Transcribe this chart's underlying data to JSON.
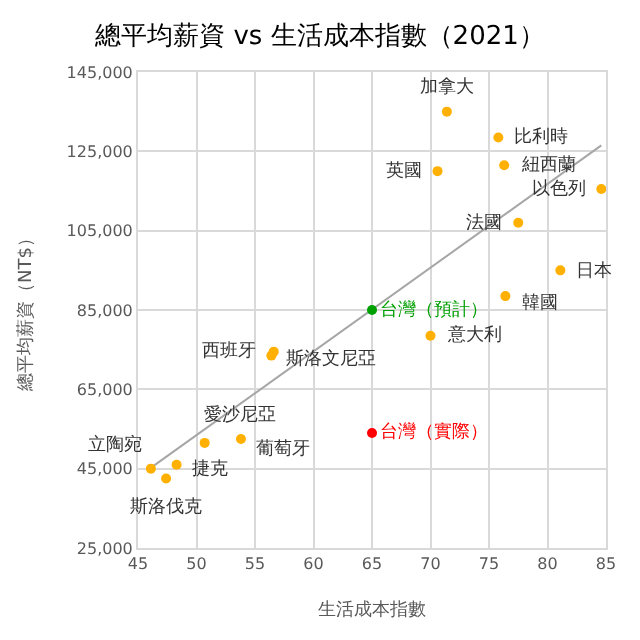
{
  "chart_data": {
    "type": "scatter",
    "title": "總平均薪資 vs 生活成本指數（2021）",
    "xlabel": "生活成本指數",
    "ylabel": "總平均薪資（NT$）",
    "xlim": [
      45,
      85
    ],
    "xticks": [
      45,
      50,
      55,
      60,
      65,
      70,
      75,
      80,
      85
    ],
    "ylim": [
      25000,
      145000
    ],
    "yticks": [
      {
        "value": 25000,
        "label": "25,000"
      },
      {
        "value": 45000,
        "label": "45,000"
      },
      {
        "value": 65000,
        "label": "65,000"
      },
      {
        "value": 85000,
        "label": "85,000"
      },
      {
        "value": 105000,
        "label": "105,000"
      },
      {
        "value": 125000,
        "label": "125,000"
      },
      {
        "value": 145000,
        "label": "145,000"
      }
    ],
    "grid": true,
    "legend": false,
    "marker": "circle",
    "series": [
      {
        "type": "line",
        "marker": "none",
        "color": "#a6a6a6",
        "x": [
          46,
          84.6
        ],
        "values": [
          45000,
          126500
        ]
      },
      {
        "color": "#ffb000",
        "x": [
          71.4,
          75.8,
          76.3,
          70.6,
          84.6,
          77.5,
          81.1,
          76.4,
          70.0,
          56.4,
          56.6,
          53.8,
          50.7,
          46.1,
          48.3,
          47.4
        ],
        "values": [
          135000,
          128500,
          121500,
          120000,
          115500,
          107000,
          95000,
          88500,
          78500,
          73500,
          74500,
          52500,
          51500,
          45000,
          46000,
          42500
        ]
      },
      {
        "name": "台灣（預計）",
        "color": "#00a000",
        "x": [
          65
        ],
        "values": [
          85000
        ]
      },
      {
        "name": "台灣（實際）",
        "color": "#ff0000",
        "x": [
          65
        ],
        "values": [
          54000
        ]
      }
    ],
    "annotations": [
      {
        "text": "加拿大",
        "x": 71.4,
        "y": 135000
      },
      {
        "text": "比利時",
        "x": 75.8,
        "y": 128500
      },
      {
        "text": "紐西蘭",
        "x": 76.3,
        "y": 121500
      },
      {
        "text": "英國",
        "x": 70.6,
        "y": 120000
      },
      {
        "text": "以色列",
        "x": 84.6,
        "y": 115500
      },
      {
        "text": "法國",
        "x": 77.5,
        "y": 107000
      },
      {
        "text": "日本",
        "x": 81.1,
        "y": 95000
      },
      {
        "text": "韓國",
        "x": 76.4,
        "y": 88500
      },
      {
        "text": "意大利",
        "x": 70.0,
        "y": 78500
      },
      {
        "text": "西班牙",
        "x": 56.4,
        "y": 73500
      },
      {
        "text": "斯洛文尼亞",
        "x": 56.6,
        "y": 74500
      },
      {
        "text": "愛沙尼亞",
        "x": 53.8,
        "y": 52500
      },
      {
        "text": "葡萄牙",
        "x": 50.7,
        "y": 51500
      },
      {
        "text": "立陶宛",
        "x": 46.1,
        "y": 45000
      },
      {
        "text": "捷克",
        "x": 48.3,
        "y": 46000
      },
      {
        "text": "斯洛伐克",
        "x": 47.4,
        "y": 42500
      }
    ]
  }
}
